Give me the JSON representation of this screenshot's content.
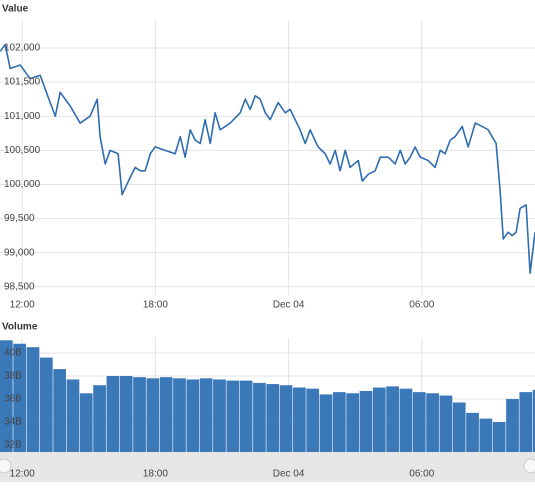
{
  "chart_data": [
    {
      "type": "line",
      "title": "Value",
      "color": "#2f6db0",
      "grid": true,
      "x": [
        -0.99,
        -0.77,
        -0.54,
        -0.09,
        0.36,
        0.81,
        1.26,
        1.49,
        1.71,
        2.16,
        2.61,
        3.06,
        3.38,
        3.51,
        3.74,
        3.96,
        4.32,
        4.5,
        4.86,
        5.09,
        5.32,
        5.54,
        5.77,
        5.99,
        6.44,
        6.89,
        7.12,
        7.34,
        7.57,
        7.79,
        8.02,
        8.24,
        8.47,
        8.69,
        8.92,
        9.37,
        9.82,
        10.05,
        10.27,
        10.5,
        10.72,
        10.95,
        11.17,
        11.53,
        11.85,
        12.07,
        12.52,
        12.75,
        12.97,
        13.33,
        13.65,
        13.87,
        14.1,
        14.32,
        14.55,
        14.77,
        15.14,
        15.32,
        15.59,
        15.9,
        16.13,
        16.49,
        16.8,
        17.03,
        17.25,
        17.48,
        17.7,
        17.93,
        18.29,
        18.6,
        18.83,
        19.05,
        19.28,
        19.5,
        19.82,
        20.09,
        20.41,
        20.72,
        20.99,
        21.17,
        21.35,
        21.53,
        21.67,
        21.89,
        22.07,
        22.25,
        22.43,
        22.7,
        22.88,
        23.1
      ],
      "values": [
        101950,
        102050,
        101700,
        101750,
        101550,
        101600,
        101200,
        101000,
        101350,
        101150,
        100900,
        101000,
        101250,
        100700,
        100300,
        100500,
        100450,
        99850,
        100100,
        100250,
        100200,
        100200,
        100450,
        100550,
        100500,
        100450,
        100700,
        100400,
        100800,
        100650,
        100600,
        100950,
        100600,
        101050,
        100800,
        100900,
        101050,
        101250,
        101100,
        101300,
        101250,
        101050,
        100950,
        101200,
        101050,
        101100,
        100800,
        100600,
        100800,
        100550,
        100450,
        100300,
        100500,
        100200,
        100500,
        100250,
        100350,
        100050,
        100150,
        100200,
        100400,
        100400,
        100300,
        100500,
        100300,
        100400,
        100550,
        100400,
        100350,
        100250,
        100500,
        100450,
        100650,
        100700,
        100850,
        100550,
        100900,
        100850,
        100800,
        100700,
        100600,
        99900,
        99200,
        99300,
        99250,
        99300,
        99650,
        99700,
        98700,
        99300
      ],
      "xlim": [
        -1,
        23.1
      ],
      "ylim": [
        98380,
        102410
      ],
      "xticks": [
        {
          "value": 0,
          "label": "12:00"
        },
        {
          "value": 6,
          "label": "18:00"
        },
        {
          "value": 12,
          "label": "Dec 04"
        },
        {
          "value": 18,
          "label": "06:00"
        }
      ],
      "yticks": [
        {
          "value": 98500,
          "label": "98,500"
        },
        {
          "value": 99000,
          "label": "99,000"
        },
        {
          "value": 99500,
          "label": "99,500"
        },
        {
          "value": 100000,
          "label": "100,000"
        },
        {
          "value": 100500,
          "label": "100,500"
        },
        {
          "value": 101000,
          "label": "101,000"
        },
        {
          "value": 101500,
          "label": "101,500"
        },
        {
          "value": 102000,
          "label": "102,000"
        }
      ]
    },
    {
      "type": "bar",
      "title": "Volume",
      "color": "#3a78b8",
      "grid": true,
      "x": [
        -1,
        -0.4,
        0.2,
        0.8,
        1.4,
        2,
        2.6,
        3.2,
        3.8,
        4.4,
        5,
        5.6,
        6.2,
        6.8,
        7.4,
        8,
        8.6,
        9.2,
        9.8,
        10.4,
        11,
        11.6,
        12.2,
        12.8,
        13.4,
        14,
        14.6,
        15.2,
        15.8,
        16.4,
        17,
        17.6,
        18.2,
        18.8,
        19.4,
        20,
        20.6,
        21.2,
        21.8,
        22.4,
        23
      ],
      "values": [
        41.1,
        40.8,
        40.5,
        39.6,
        38.6,
        37.7,
        36.5,
        37.2,
        38.0,
        38.0,
        37.9,
        37.8,
        37.9,
        37.8,
        37.7,
        37.8,
        37.7,
        37.6,
        37.6,
        37.4,
        37.3,
        37.2,
        37.0,
        36.9,
        36.4,
        36.6,
        36.5,
        36.7,
        37.0,
        37.1,
        36.9,
        36.6,
        36.5,
        36.3,
        35.7,
        34.8,
        34.3,
        34.0,
        36.0,
        36.6,
        36.8
      ],
      "xlim": [
        -1,
        23.1
      ],
      "ylim": [
        31.4,
        41.3
      ],
      "xticks": [
        {
          "value": 0,
          "label": "12:00"
        },
        {
          "value": 6,
          "label": "18:00"
        },
        {
          "value": 12,
          "label": "Dec 04"
        },
        {
          "value": 18,
          "label": "06:00"
        }
      ],
      "yticks": [
        {
          "value": 32,
          "label": "32B"
        },
        {
          "value": 34,
          "label": "34B"
        },
        {
          "value": 36,
          "label": "36B"
        },
        {
          "value": 38,
          "label": "38B"
        },
        {
          "value": 40,
          "label": "40B"
        }
      ]
    }
  ]
}
